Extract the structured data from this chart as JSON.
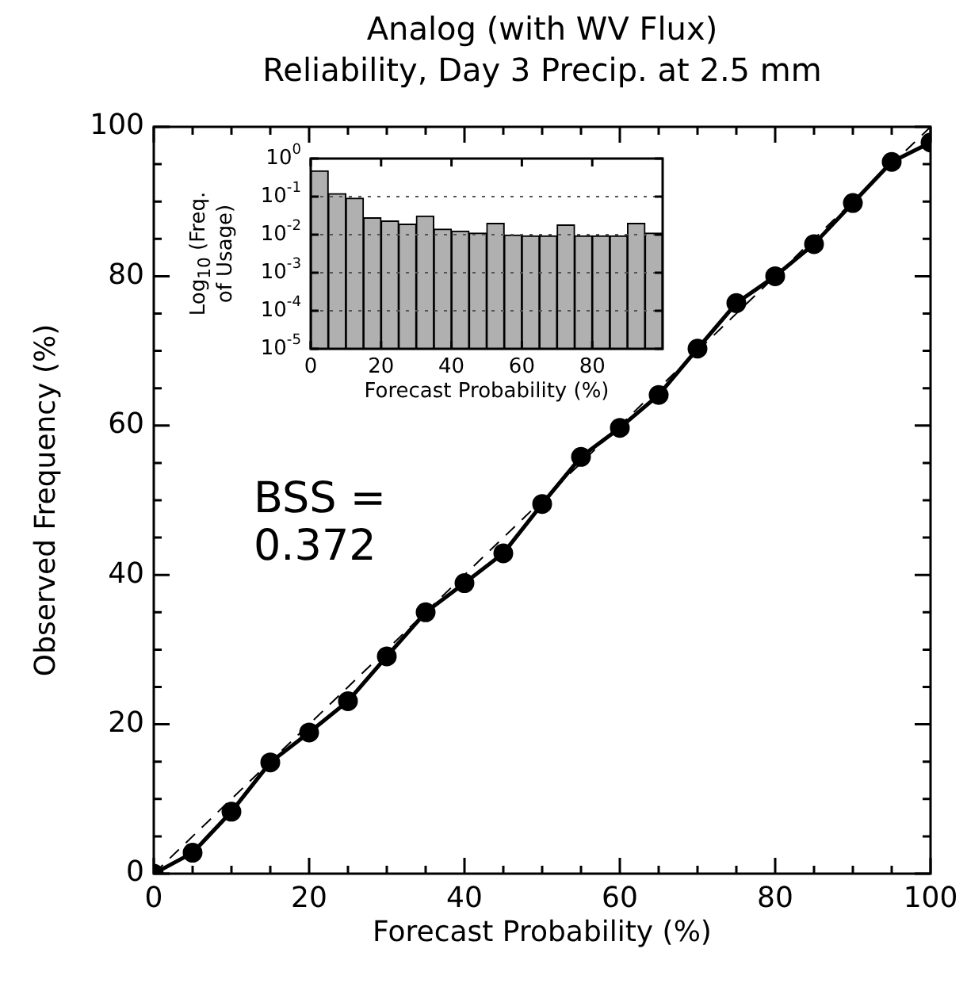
{
  "chart_data": [
    {
      "type": "line",
      "title": "Analog (with WV Flux)",
      "subtitle": "Reliability, Day 3 Precip. at 2.5 mm",
      "xlabel": "Forecast Probability (%)",
      "ylabel": "Observed Frequency (%)",
      "series": [
        {
          "type": "line",
          "color": "#000000",
          "line_style": "dashed",
          "x": [
            0,
            100
          ],
          "values": [
            0,
            100
          ]
        },
        {
          "type": "line",
          "color": "#000000",
          "marker": "circle",
          "x": [
            0,
            5,
            10,
            15,
            20,
            25,
            30,
            35,
            40,
            45,
            50,
            55,
            60,
            65,
            70,
            75,
            80,
            85,
            90,
            95,
            100
          ],
          "values": [
            0,
            2.8,
            8.3,
            14.9,
            18.9,
            23.1,
            29.1,
            35.0,
            38.9,
            42.9,
            49.5,
            55.8,
            59.7,
            64.1,
            70.3,
            76.4,
            80.0,
            84.3,
            89.8,
            95.3,
            97.9
          ]
        }
      ],
      "xlim": [
        0,
        100
      ],
      "ylim": [
        0,
        100
      ],
      "xticks": [
        0,
        {
          "value": 5,
          "label": null
        },
        {
          "value": 10,
          "label": null
        },
        {
          "value": 15,
          "label": null
        },
        20,
        {
          "value": 25,
          "label": null
        },
        {
          "value": 30,
          "label": null
        },
        {
          "value": 35,
          "label": null
        },
        40,
        {
          "value": 45,
          "label": null
        },
        {
          "value": 50,
          "label": null
        },
        {
          "value": 55,
          "label": null
        },
        60,
        {
          "value": 65,
          "label": null
        },
        {
          "value": 70,
          "label": null
        },
        {
          "value": 75,
          "label": null
        },
        80,
        {
          "value": 85,
          "label": null
        },
        {
          "value": 90,
          "label": null
        },
        {
          "value": 95,
          "label": null
        },
        100
      ],
      "yticks": [
        0,
        {
          "value": 5,
          "label": null
        },
        {
          "value": 10,
          "label": null
        },
        {
          "value": 15,
          "label": null
        },
        20,
        {
          "value": 25,
          "label": null
        },
        {
          "value": 30,
          "label": null
        },
        {
          "value": 35,
          "label": null
        },
        40,
        {
          "value": 45,
          "label": null
        },
        {
          "value": 50,
          "label": null
        },
        {
          "value": 55,
          "label": null
        },
        60,
        {
          "value": 65,
          "label": null
        },
        {
          "value": 70,
          "label": null
        },
        {
          "value": 75,
          "label": null
        },
        80,
        {
          "value": 85,
          "label": null
        },
        {
          "value": 90,
          "label": null
        },
        {
          "value": 95,
          "label": null
        },
        100
      ],
      "annotations": [
        "BSS = 0.372"
      ],
      "line_style": "solid",
      "grid": false,
      "legend": false
    },
    {
      "type": "histogram",
      "xlabel": "Forecast Probability (%)",
      "ylabel": "Log$_{10}$ (Freq. of Usage)",
      "color": "#b0b0b0",
      "bins": [
        0,
        5,
        10,
        15,
        20,
        25,
        30,
        35,
        40,
        45,
        50,
        55,
        60,
        65,
        70,
        75,
        80,
        85,
        90,
        95,
        100
      ],
      "values": [
        0.48,
        0.12,
        0.091,
        0.028,
        0.023,
        0.019,
        0.031,
        0.014,
        0.0125,
        0.011,
        0.02,
        0.0098,
        0.0093,
        0.0093,
        0.018,
        0.0093,
        0.0093,
        0.0093,
        0.02,
        0.011
      ],
      "log": "y",
      "xlim": [
        0,
        100
      ],
      "xticks": [
        0,
        20,
        40,
        60,
        80
      ],
      "ylim": [
        1e-05,
        1
      ],
      "yticks": [
        {
          "value": 1e-05,
          "label": "10$^{-5}$"
        },
        {
          "value": 0.0001,
          "label": "10$^{-4}$"
        },
        {
          "value": 0.001,
          "label": "10$^{-3}$"
        },
        {
          "value": 0.01,
          "label": "10$^{-2}$"
        },
        {
          "value": 0.1,
          "label": "10$^{-1}$"
        },
        {
          "value": 1,
          "label": "10$^{0}$"
        }
      ],
      "grid": "y",
      "legend": false
    }
  ]
}
